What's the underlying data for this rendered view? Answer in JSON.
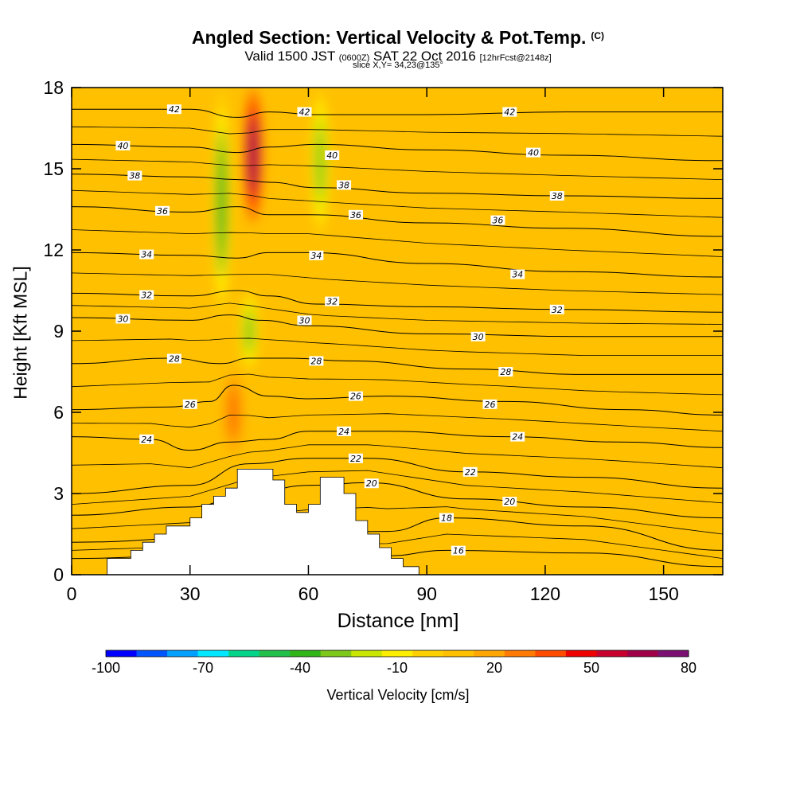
{
  "header": {
    "title": "Angled Section: Vertical Velocity & Pot.Temp.",
    "title_tag": "(C)",
    "valid_prefix": "Valid 1500 JST",
    "valid_utc": "(0600Z)",
    "valid_date": "SAT 22 Oct 2016",
    "forecast": "[12hrFcst@2148z]",
    "slice": "slice X,Y= 34,23@135°"
  },
  "chart_data": {
    "type": "heatmap",
    "xlabel": "Distance [nm]",
    "ylabel": "Height [Kft MSL]",
    "xlim": [
      0,
      165
    ],
    "ylim": [
      0,
      18
    ],
    "x_ticks": [
      0,
      30,
      60,
      90,
      120,
      150
    ],
    "y_ticks": [
      0,
      3,
      6,
      9,
      12,
      15,
      18
    ],
    "colorbar": {
      "label": "Vertical Velocity [cm/s]",
      "ticks": [
        -100,
        -70,
        -40,
        -10,
        20,
        50,
        80
      ],
      "colors": [
        "#0000ff",
        "#0055ff",
        "#00a0ff",
        "#00e8ff",
        "#00d58a",
        "#22c04a",
        "#30b418",
        "#7dc81a",
        "#c8e600",
        "#ffee00",
        "#ffd000",
        "#ffc000",
        "#ffa600",
        "#ff7a00",
        "#ff4a00",
        "#ee0000",
        "#c8002e",
        "#a00048",
        "#7a1072"
      ]
    },
    "velocity_field": {
      "background_cm_s": 12,
      "features": [
        {
          "kind": "downdraft",
          "x": 38,
          "y_range": [
            9.5,
            18
          ],
          "min_cm_s": -40
        },
        {
          "kind": "downdraft",
          "x": 45,
          "y_range": [
            7.5,
            10.5
          ],
          "min_cm_s": -30
        },
        {
          "kind": "updraft",
          "x": 46,
          "y_range": [
            13,
            18
          ],
          "max_cm_s": 65
        },
        {
          "kind": "updraft",
          "x": 41,
          "y_range": [
            4.5,
            7.5
          ],
          "max_cm_s": 32
        },
        {
          "kind": "downdraft",
          "x": 63,
          "y_range": [
            12.5,
            18
          ],
          "min_cm_s": -28
        }
      ]
    },
    "terrain_profile": [
      [
        0,
        0
      ],
      [
        9,
        0
      ],
      [
        9,
        0.6
      ],
      [
        15,
        0.6
      ],
      [
        15,
        0.9
      ],
      [
        18,
        0.9
      ],
      [
        18,
        1.2
      ],
      [
        21,
        1.2
      ],
      [
        21,
        1.5
      ],
      [
        24,
        1.5
      ],
      [
        24,
        1.8
      ],
      [
        30,
        1.8
      ],
      [
        30,
        2.1
      ],
      [
        33,
        2.1
      ],
      [
        33,
        2.6
      ],
      [
        36,
        2.6
      ],
      [
        36,
        2.9
      ],
      [
        39,
        2.9
      ],
      [
        39,
        3.2
      ],
      [
        42,
        3.2
      ],
      [
        42,
        3.9
      ],
      [
        47,
        3.9
      ],
      [
        47,
        3.9
      ],
      [
        51,
        3.9
      ],
      [
        51,
        3.5
      ],
      [
        54,
        3.5
      ],
      [
        54,
        2.6
      ],
      [
        57,
        2.6
      ],
      [
        57,
        2.3
      ],
      [
        60,
        2.3
      ],
      [
        60,
        2.6
      ],
      [
        63,
        2.6
      ],
      [
        63,
        3.6
      ],
      [
        66,
        3.6
      ],
      [
        66,
        3.6
      ],
      [
        69,
        3.6
      ],
      [
        69,
        3.0
      ],
      [
        72,
        3.0
      ],
      [
        72,
        2.0
      ],
      [
        75,
        2.0
      ],
      [
        75,
        1.5
      ],
      [
        78,
        1.5
      ],
      [
        78,
        1.0
      ],
      [
        81,
        1.0
      ],
      [
        81,
        0.6
      ],
      [
        84,
        0.6
      ],
      [
        84,
        0.3
      ],
      [
        88,
        0.3
      ],
      [
        88,
        0
      ],
      [
        165,
        0
      ]
    ],
    "isotherms": [
      {
        "label": "16",
        "points": [
          [
            0,
            0.6
          ],
          [
            40,
            0.8
          ],
          [
            80,
            0.7
          ],
          [
            95,
            0.9
          ],
          [
            130,
            0.8
          ],
          [
            165,
            0.3
          ]
        ],
        "label_x": 98
      },
      {
        "label": "18",
        "points": [
          [
            0,
            1.2
          ],
          [
            40,
            1.4
          ],
          [
            80,
            1.6
          ],
          [
            95,
            2.1
          ],
          [
            130,
            1.8
          ],
          [
            165,
            0.9
          ]
        ],
        "label_x": 95
      },
      {
        "label": "20",
        "points": [
          [
            0,
            2.2
          ],
          [
            30,
            2.5
          ],
          [
            45,
            3.0
          ],
          [
            60,
            3.3
          ],
          [
            75,
            3.4
          ],
          [
            100,
            2.8
          ],
          [
            130,
            2.5
          ],
          [
            165,
            2.1
          ]
        ],
        "label_x": 76
      },
      {
        "label": "22",
        "points": [
          [
            0,
            3.0
          ],
          [
            30,
            3.3
          ],
          [
            45,
            4.1
          ],
          [
            60,
            4.3
          ],
          [
            75,
            4.3
          ],
          [
            100,
            3.8
          ],
          [
            130,
            3.6
          ],
          [
            165,
            3.2
          ]
        ],
        "label_x": 72
      },
      {
        "label": "24",
        "points": [
          [
            0,
            5.1
          ],
          [
            20,
            5.0
          ],
          [
            30,
            4.6
          ],
          [
            40,
            4.9
          ],
          [
            50,
            5.0
          ],
          [
            60,
            5.3
          ],
          [
            80,
            5.3
          ],
          [
            110,
            5.1
          ],
          [
            140,
            4.9
          ],
          [
            165,
            4.7
          ]
        ],
        "label_x": 19
      },
      {
        "label": "26",
        "points": [
          [
            0,
            6.1
          ],
          [
            25,
            6.2
          ],
          [
            35,
            6.4
          ],
          [
            41,
            7.0
          ],
          [
            50,
            6.6
          ],
          [
            60,
            6.5
          ],
          [
            80,
            6.6
          ],
          [
            110,
            6.4
          ],
          [
            140,
            6.1
          ],
          [
            165,
            5.9
          ]
        ],
        "label_x": 30
      },
      {
        "label": "28",
        "points": [
          [
            0,
            7.8
          ],
          [
            25,
            8.0
          ],
          [
            38,
            7.8
          ],
          [
            45,
            8.0
          ],
          [
            55,
            8.0
          ],
          [
            70,
            7.9
          ],
          [
            100,
            7.6
          ],
          [
            130,
            7.4
          ],
          [
            165,
            7.4
          ]
        ],
        "label_x": 26
      },
      {
        "label": "30",
        "points": [
          [
            0,
            9.5
          ],
          [
            30,
            9.4
          ],
          [
            40,
            9.6
          ],
          [
            48,
            9.4
          ],
          [
            60,
            9.2
          ],
          [
            90,
            8.9
          ],
          [
            130,
            8.8
          ],
          [
            165,
            8.8
          ]
        ],
        "label_x": 13
      },
      {
        "label": "32",
        "points": [
          [
            0,
            10.4
          ],
          [
            30,
            10.3
          ],
          [
            42,
            10.5
          ],
          [
            50,
            10.3
          ],
          [
            62,
            10.0
          ],
          [
            90,
            9.9
          ],
          [
            125,
            9.8
          ],
          [
            165,
            9.7
          ]
        ],
        "label_x": 19
      },
      {
        "label": "34",
        "points": [
          [
            0,
            11.9
          ],
          [
            30,
            11.8
          ],
          [
            42,
            11.7
          ],
          [
            50,
            11.9
          ],
          [
            60,
            11.9
          ],
          [
            90,
            11.5
          ],
          [
            125,
            11.2
          ],
          [
            165,
            11.0
          ]
        ],
        "label_x": 19
      },
      {
        "label": "36",
        "points": [
          [
            0,
            13.6
          ],
          [
            30,
            13.4
          ],
          [
            42,
            13.6
          ],
          [
            50,
            13.3
          ],
          [
            60,
            13.3
          ],
          [
            90,
            13.0
          ],
          [
            125,
            12.8
          ],
          [
            165,
            12.5
          ]
        ],
        "label_x": 23
      },
      {
        "label": "38",
        "points": [
          [
            0,
            14.8
          ],
          [
            30,
            14.7
          ],
          [
            42,
            14.6
          ],
          [
            50,
            14.5
          ],
          [
            62,
            14.3
          ],
          [
            90,
            14.1
          ],
          [
            125,
            14.0
          ],
          [
            165,
            13.9
          ]
        ],
        "label_x": 16
      },
      {
        "label": "40",
        "points": [
          [
            0,
            15.9
          ],
          [
            30,
            15.8
          ],
          [
            42,
            15.6
          ],
          [
            50,
            15.8
          ],
          [
            62,
            15.9
          ],
          [
            90,
            15.7
          ],
          [
            125,
            15.5
          ],
          [
            165,
            15.3
          ]
        ],
        "label_x": 13
      },
      {
        "label": "42",
        "points": [
          [
            0,
            17.2
          ],
          [
            30,
            17.2
          ],
          [
            42,
            16.9
          ],
          [
            50,
            17.1
          ],
          [
            62,
            17.0
          ],
          [
            90,
            17.0
          ],
          [
            125,
            17.1
          ],
          [
            165,
            17.1
          ]
        ],
        "label_x": 26
      }
    ],
    "extra_isotherm_labels": [
      {
        "label": "42",
        "x": 59,
        "y": 17.1
      },
      {
        "label": "42",
        "x": 111,
        "y": 17.1
      },
      {
        "label": "40",
        "x": 66,
        "y": 15.5
      },
      {
        "label": "40",
        "x": 117,
        "y": 15.6
      },
      {
        "label": "38",
        "x": 69,
        "y": 14.4
      },
      {
        "label": "38",
        "x": 123,
        "y": 14.0
      },
      {
        "label": "36",
        "x": 72,
        "y": 13.3
      },
      {
        "label": "36",
        "x": 108,
        "y": 13.1
      },
      {
        "label": "34",
        "x": 62,
        "y": 11.8
      },
      {
        "label": "34",
        "x": 113,
        "y": 11.1
      },
      {
        "label": "32",
        "x": 66,
        "y": 10.1
      },
      {
        "label": "32",
        "x": 123,
        "y": 9.8
      },
      {
        "label": "30",
        "x": 59,
        "y": 9.4
      },
      {
        "label": "30",
        "x": 103,
        "y": 8.8
      },
      {
        "label": "28",
        "x": 62,
        "y": 7.9
      },
      {
        "label": "28",
        "x": 110,
        "y": 7.5
      },
      {
        "label": "26",
        "x": 72,
        "y": 6.6
      },
      {
        "label": "26",
        "x": 106,
        "y": 6.3
      },
      {
        "label": "24",
        "x": 69,
        "y": 5.3
      },
      {
        "label": "24",
        "x": 113,
        "y": 5.1
      },
      {
        "label": "22",
        "x": 101,
        "y": 3.8
      },
      {
        "label": "20",
        "x": 111,
        "y": 2.7
      }
    ]
  }
}
